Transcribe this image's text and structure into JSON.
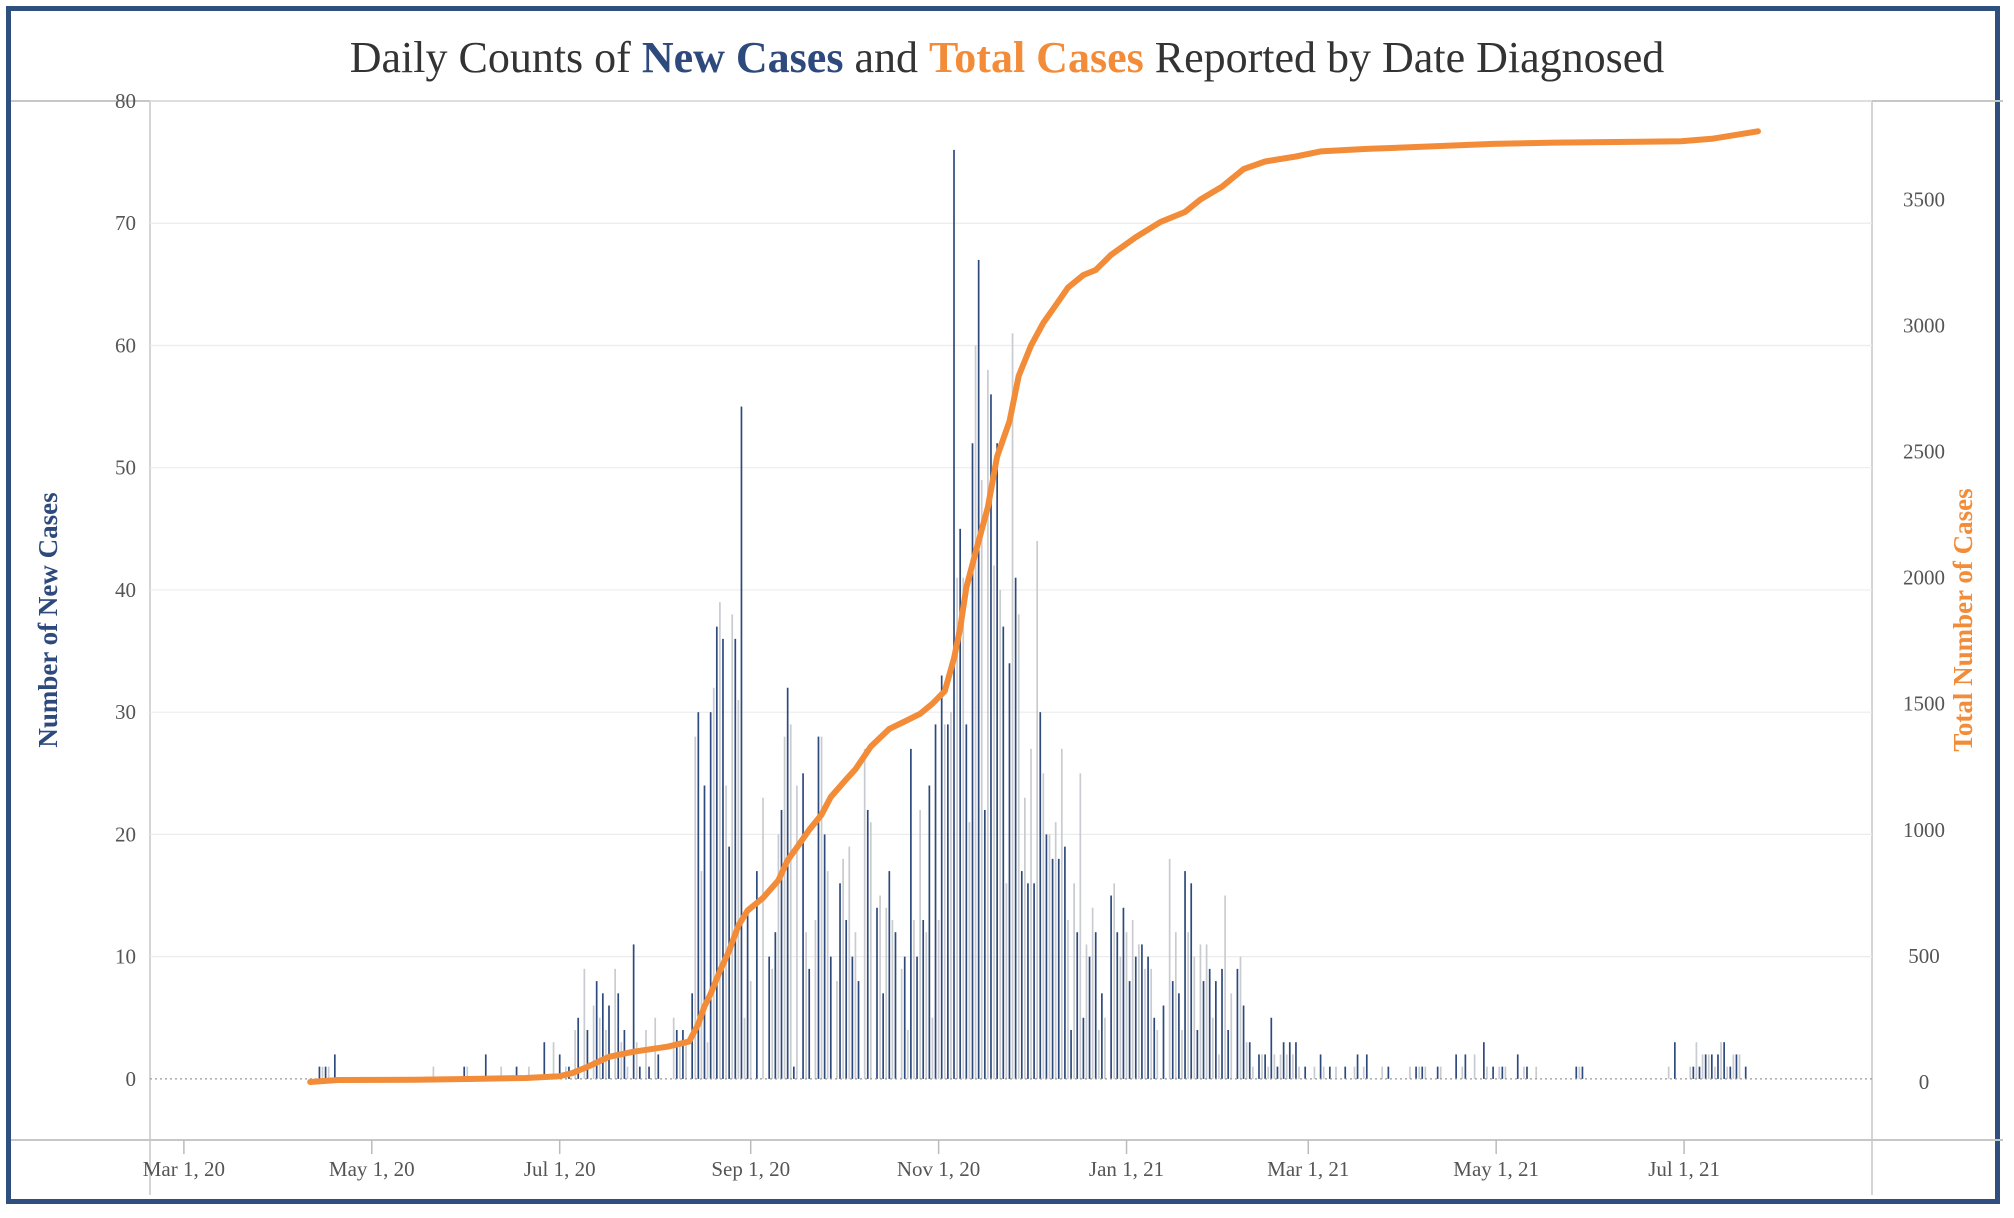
{
  "chart_data": {
    "type": "bar+line",
    "title": {
      "parts": [
        {
          "text": "Daily Counts of ",
          "color": "#333333",
          "bold": false
        },
        {
          "text": "New Cases",
          "color": "#2e4a7d",
          "bold": true
        },
        {
          "text": " and ",
          "color": "#333333",
          "bold": false
        },
        {
          "text": "Total Cases",
          "color": "#f28c38",
          "bold": true
        },
        {
          "text": " Reported by Date Diagnosed",
          "color": "#333333",
          "bold": false
        }
      ]
    },
    "ylabel_left": "Number of New Cases",
    "ylabel_right": "Total Number of Cases",
    "colors": {
      "bar_dark": "#2e4a7d",
      "bar_light": "#c8cbd0",
      "line": "#f28c38",
      "left_label": "#2e4a7d",
      "right_label": "#f28c38"
    },
    "xlim": [
      "2020-02-19",
      "2021-08-31"
    ],
    "x_ticks": [
      {
        "date": "2020-03-01",
        "label": "Mar 1, 20"
      },
      {
        "date": "2020-05-01",
        "label": "May 1, 20"
      },
      {
        "date": "2020-07-01",
        "label": "Jul 1, 20"
      },
      {
        "date": "2020-09-01",
        "label": "Sep 1, 20"
      },
      {
        "date": "2020-11-01",
        "label": "Nov 1, 20"
      },
      {
        "date": "2021-01-01",
        "label": "Jan 1, 21"
      },
      {
        "date": "2021-03-01",
        "label": "Mar 1, 21"
      },
      {
        "date": "2021-05-01",
        "label": "May 1, 21"
      },
      {
        "date": "2021-07-01",
        "label": "Jul 1, 21"
      }
    ],
    "ylim_left": [
      -5,
      80
    ],
    "yticks_left": [
      0,
      10,
      20,
      30,
      40,
      50,
      60,
      70,
      80
    ],
    "ylim_right": [
      -230,
      3890
    ],
    "yticks_right": [
      0,
      500,
      1000,
      1500,
      2000,
      2500,
      3000,
      3500
    ],
    "grid": true,
    "new_cases": [
      [
        "2020-04-14",
        1
      ],
      [
        "2020-04-15",
        1
      ],
      [
        "2020-04-16",
        1
      ],
      [
        "2020-04-17",
        1
      ],
      [
        "2020-04-19",
        2
      ],
      [
        "2020-05-21",
        1
      ],
      [
        "2020-05-31",
        1
      ],
      [
        "2020-06-01",
        1
      ],
      [
        "2020-06-07",
        2
      ],
      [
        "2020-06-12",
        1
      ],
      [
        "2020-06-17",
        1
      ],
      [
        "2020-06-21",
        1
      ],
      [
        "2020-06-26",
        3
      ],
      [
        "2020-06-29",
        3
      ],
      [
        "2020-07-01",
        2
      ],
      [
        "2020-07-03",
        1
      ],
      [
        "2020-07-04",
        1
      ],
      [
        "2020-07-06",
        4
      ],
      [
        "2020-07-07",
        5
      ],
      [
        "2020-07-09",
        9
      ],
      [
        "2020-07-10",
        4
      ],
      [
        "2020-07-12",
        6
      ],
      [
        "2020-07-13",
        8
      ],
      [
        "2020-07-14",
        5
      ],
      [
        "2020-07-15",
        7
      ],
      [
        "2020-07-16",
        4
      ],
      [
        "2020-07-17",
        6
      ],
      [
        "2020-07-19",
        9
      ],
      [
        "2020-07-20",
        7
      ],
      [
        "2020-07-21",
        3
      ],
      [
        "2020-07-22",
        4
      ],
      [
        "2020-07-23",
        1
      ],
      [
        "2020-07-25",
        11
      ],
      [
        "2020-07-26",
        3
      ],
      [
        "2020-07-27",
        1
      ],
      [
        "2020-07-29",
        4
      ],
      [
        "2020-07-30",
        1
      ],
      [
        "2020-08-01",
        5
      ],
      [
        "2020-08-02",
        2
      ],
      [
        "2020-08-07",
        5
      ],
      [
        "2020-08-08",
        4
      ],
      [
        "2020-08-09",
        3
      ],
      [
        "2020-08-10",
        4
      ],
      [
        "2020-08-11",
        3
      ],
      [
        "2020-08-13",
        7
      ],
      [
        "2020-08-14",
        28
      ],
      [
        "2020-08-15",
        30
      ],
      [
        "2020-08-16",
        17
      ],
      [
        "2020-08-17",
        24
      ],
      [
        "2020-08-18",
        3
      ],
      [
        "2020-08-19",
        30
      ],
      [
        "2020-08-20",
        32
      ],
      [
        "2020-08-21",
        37
      ],
      [
        "2020-08-22",
        39
      ],
      [
        "2020-08-23",
        36
      ],
      [
        "2020-08-24",
        24
      ],
      [
        "2020-08-25",
        19
      ],
      [
        "2020-08-26",
        38
      ],
      [
        "2020-08-27",
        36
      ],
      [
        "2020-08-28",
        31
      ],
      [
        "2020-08-29",
        55
      ],
      [
        "2020-08-30",
        5
      ],
      [
        "2020-08-31",
        14
      ],
      [
        "2020-09-01",
        8
      ],
      [
        "2020-09-03",
        17
      ],
      [
        "2020-09-05",
        23
      ],
      [
        "2020-09-07",
        10
      ],
      [
        "2020-09-08",
        9
      ],
      [
        "2020-09-09",
        12
      ],
      [
        "2020-09-10",
        20
      ],
      [
        "2020-09-11",
        22
      ],
      [
        "2020-09-12",
        28
      ],
      [
        "2020-09-13",
        32
      ],
      [
        "2020-09-14",
        29
      ],
      [
        "2020-09-15",
        1
      ],
      [
        "2020-09-16",
        24
      ],
      [
        "2020-09-18",
        25
      ],
      [
        "2020-09-19",
        12
      ],
      [
        "2020-09-20",
        9
      ],
      [
        "2020-09-22",
        13
      ],
      [
        "2020-09-23",
        28
      ],
      [
        "2020-09-24",
        28
      ],
      [
        "2020-09-25",
        20
      ],
      [
        "2020-09-26",
        17
      ],
      [
        "2020-09-27",
        10
      ],
      [
        "2020-09-29",
        8
      ],
      [
        "2020-09-30",
        16
      ],
      [
        "2020-10-01",
        18
      ],
      [
        "2020-10-02",
        13
      ],
      [
        "2020-10-03",
        19
      ],
      [
        "2020-10-04",
        10
      ],
      [
        "2020-10-05",
        12
      ],
      [
        "2020-10-06",
        8
      ],
      [
        "2020-10-08",
        27
      ],
      [
        "2020-10-09",
        22
      ],
      [
        "2020-10-10",
        21
      ],
      [
        "2020-10-12",
        14
      ],
      [
        "2020-10-13",
        15
      ],
      [
        "2020-10-14",
        7
      ],
      [
        "2020-10-15",
        14
      ],
      [
        "2020-10-16",
        17
      ],
      [
        "2020-10-17",
        13
      ],
      [
        "2020-10-18",
        12
      ],
      [
        "2020-10-20",
        9
      ],
      [
        "2020-10-21",
        10
      ],
      [
        "2020-10-22",
        4
      ],
      [
        "2020-10-23",
        27
      ],
      [
        "2020-10-24",
        13
      ],
      [
        "2020-10-25",
        10
      ],
      [
        "2020-10-26",
        22
      ],
      [
        "2020-10-27",
        13
      ],
      [
        "2020-10-28",
        12
      ],
      [
        "2020-10-29",
        24
      ],
      [
        "2020-10-30",
        5
      ],
      [
        "2020-10-31",
        29
      ],
      [
        "2020-11-01",
        13
      ],
      [
        "2020-11-02",
        33
      ],
      [
        "2020-11-03",
        29
      ],
      [
        "2020-11-04",
        29
      ],
      [
        "2020-11-05",
        30
      ],
      [
        "2020-11-06",
        76
      ],
      [
        "2020-11-07",
        41
      ],
      [
        "2020-11-08",
        45
      ],
      [
        "2020-11-09",
        41
      ],
      [
        "2020-11-10",
        29
      ],
      [
        "2020-11-11",
        21
      ],
      [
        "2020-11-12",
        52
      ],
      [
        "2020-11-13",
        60
      ],
      [
        "2020-11-14",
        67
      ],
      [
        "2020-11-15",
        49
      ],
      [
        "2020-11-16",
        22
      ],
      [
        "2020-11-17",
        58
      ],
      [
        "2020-11-18",
        56
      ],
      [
        "2020-11-19",
        42
      ],
      [
        "2020-11-20",
        52
      ],
      [
        "2020-11-21",
        40
      ],
      [
        "2020-11-22",
        37
      ],
      [
        "2020-11-23",
        16
      ],
      [
        "2020-11-24",
        34
      ],
      [
        "2020-11-25",
        61
      ],
      [
        "2020-11-26",
        41
      ],
      [
        "2020-11-27",
        38
      ],
      [
        "2020-11-28",
        17
      ],
      [
        "2020-11-29",
        23
      ],
      [
        "2020-11-30",
        16
      ],
      [
        "2020-12-01",
        27
      ],
      [
        "2020-12-02",
        16
      ],
      [
        "2020-12-03",
        44
      ],
      [
        "2020-12-04",
        30
      ],
      [
        "2020-12-05",
        25
      ],
      [
        "2020-12-06",
        20
      ],
      [
        "2020-12-07",
        20
      ],
      [
        "2020-12-08",
        18
      ],
      [
        "2020-12-09",
        21
      ],
      [
        "2020-12-10",
        18
      ],
      [
        "2020-12-11",
        27
      ],
      [
        "2020-12-12",
        19
      ],
      [
        "2020-12-13",
        13
      ],
      [
        "2020-12-14",
        4
      ],
      [
        "2020-12-15",
        16
      ],
      [
        "2020-12-16",
        12
      ],
      [
        "2020-12-17",
        25
      ],
      [
        "2020-12-18",
        5
      ],
      [
        "2020-12-19",
        11
      ],
      [
        "2020-12-20",
        10
      ],
      [
        "2020-12-21",
        14
      ],
      [
        "2020-12-22",
        12
      ],
      [
        "2020-12-23",
        4
      ],
      [
        "2020-12-24",
        7
      ],
      [
        "2020-12-25",
        5
      ],
      [
        "2020-12-27",
        15
      ],
      [
        "2020-12-28",
        16
      ],
      [
        "2020-12-29",
        12
      ],
      [
        "2020-12-30",
        10
      ],
      [
        "2020-12-31",
        14
      ],
      [
        "2021-01-01",
        12
      ],
      [
        "2021-01-02",
        8
      ],
      [
        "2021-01-03",
        13
      ],
      [
        "2021-01-04",
        10
      ],
      [
        "2021-01-05",
        11
      ],
      [
        "2021-01-06",
        11
      ],
      [
        "2021-01-07",
        9
      ],
      [
        "2021-01-08",
        10
      ],
      [
        "2021-01-09",
        9
      ],
      [
        "2021-01-10",
        5
      ],
      [
        "2021-01-11",
        4
      ],
      [
        "2021-01-13",
        6
      ],
      [
        "2021-01-15",
        18
      ],
      [
        "2021-01-16",
        8
      ],
      [
        "2021-01-17",
        12
      ],
      [
        "2021-01-18",
        7
      ],
      [
        "2021-01-19",
        4
      ],
      [
        "2021-01-20",
        17
      ],
      [
        "2021-01-21",
        12
      ],
      [
        "2021-01-22",
        16
      ],
      [
        "2021-01-23",
        10
      ],
      [
        "2021-01-24",
        4
      ],
      [
        "2021-01-25",
        11
      ],
      [
        "2021-01-26",
        8
      ],
      [
        "2021-01-27",
        11
      ],
      [
        "2021-01-28",
        9
      ],
      [
        "2021-01-29",
        5
      ],
      [
        "2021-01-30",
        8
      ],
      [
        "2021-01-31",
        2
      ],
      [
        "2021-02-01",
        9
      ],
      [
        "2021-02-02",
        15
      ],
      [
        "2021-02-03",
        4
      ],
      [
        "2021-02-04",
        7
      ],
      [
        "2021-02-06",
        9
      ],
      [
        "2021-02-07",
        10
      ],
      [
        "2021-02-08",
        6
      ],
      [
        "2021-02-09",
        3
      ],
      [
        "2021-02-10",
        3
      ],
      [
        "2021-02-11",
        1
      ],
      [
        "2021-02-13",
        2
      ],
      [
        "2021-02-14",
        2
      ],
      [
        "2021-02-15",
        2
      ],
      [
        "2021-02-16",
        1
      ],
      [
        "2021-02-17",
        5
      ],
      [
        "2021-02-18",
        2
      ],
      [
        "2021-02-19",
        1
      ],
      [
        "2021-02-20",
        2
      ],
      [
        "2021-02-21",
        3
      ],
      [
        "2021-02-22",
        2
      ],
      [
        "2021-02-23",
        3
      ],
      [
        "2021-02-24",
        2
      ],
      [
        "2021-02-25",
        3
      ],
      [
        "2021-02-26",
        1
      ],
      [
        "2021-02-28",
        1
      ],
      [
        "2021-03-03",
        1
      ],
      [
        "2021-03-05",
        2
      ],
      [
        "2021-03-06",
        1
      ],
      [
        "2021-03-08",
        1
      ],
      [
        "2021-03-10",
        1
      ],
      [
        "2021-03-13",
        1
      ],
      [
        "2021-03-16",
        1
      ],
      [
        "2021-03-17",
        2
      ],
      [
        "2021-03-19",
        1
      ],
      [
        "2021-03-20",
        2
      ],
      [
        "2021-03-25",
        1
      ],
      [
        "2021-03-27",
        1
      ],
      [
        "2021-04-03",
        1
      ],
      [
        "2021-04-05",
        1
      ],
      [
        "2021-04-06",
        1
      ],
      [
        "2021-04-07",
        1
      ],
      [
        "2021-04-08",
        1
      ],
      [
        "2021-04-12",
        1
      ],
      [
        "2021-04-13",
        1
      ],
      [
        "2021-04-18",
        2
      ],
      [
        "2021-04-20",
        1
      ],
      [
        "2021-04-21",
        2
      ],
      [
        "2021-04-24",
        2
      ],
      [
        "2021-04-27",
        3
      ],
      [
        "2021-04-28",
        1
      ],
      [
        "2021-04-30",
        1
      ],
      [
        "2021-05-02",
        1
      ],
      [
        "2021-05-03",
        1
      ],
      [
        "2021-05-04",
        1
      ],
      [
        "2021-05-08",
        2
      ],
      [
        "2021-05-10",
        1
      ],
      [
        "2021-05-11",
        1
      ],
      [
        "2021-05-14",
        1
      ],
      [
        "2021-05-27",
        1
      ],
      [
        "2021-05-28",
        1
      ],
      [
        "2021-05-29",
        1
      ],
      [
        "2021-06-26",
        1
      ],
      [
        "2021-06-28",
        3
      ],
      [
        "2021-07-03",
        1
      ],
      [
        "2021-07-04",
        1
      ],
      [
        "2021-07-05",
        3
      ],
      [
        "2021-07-06",
        1
      ],
      [
        "2021-07-07",
        2
      ],
      [
        "2021-07-08",
        2
      ],
      [
        "2021-07-09",
        2
      ],
      [
        "2021-07-10",
        2
      ],
      [
        "2021-07-11",
        1
      ],
      [
        "2021-07-12",
        2
      ],
      [
        "2021-07-13",
        3
      ],
      [
        "2021-07-14",
        3
      ],
      [
        "2021-07-15",
        1
      ],
      [
        "2021-07-16",
        1
      ],
      [
        "2021-07-17",
        2
      ],
      [
        "2021-07-18",
        2
      ],
      [
        "2021-07-19",
        2
      ],
      [
        "2021-07-21",
        1
      ]
    ],
    "total_cases": [
      [
        "2020-04-11",
        0
      ],
      [
        "2020-04-20",
        8
      ],
      [
        "2020-05-15",
        9
      ],
      [
        "2020-06-01",
        12
      ],
      [
        "2020-06-20",
        16
      ],
      [
        "2020-07-01",
        23
      ],
      [
        "2020-07-05",
        35
      ],
      [
        "2020-07-10",
        60
      ],
      [
        "2020-07-17",
        100
      ],
      [
        "2020-07-25",
        120
      ],
      [
        "2020-08-05",
        140
      ],
      [
        "2020-08-12",
        160
      ],
      [
        "2020-08-15",
        230
      ],
      [
        "2020-08-17",
        300
      ],
      [
        "2020-08-19",
        350
      ],
      [
        "2020-08-22",
        440
      ],
      [
        "2020-08-25",
        520
      ],
      [
        "2020-08-28",
        620
      ],
      [
        "2020-08-31",
        680
      ],
      [
        "2020-09-05",
        730
      ],
      [
        "2020-09-10",
        800
      ],
      [
        "2020-09-13",
        880
      ],
      [
        "2020-09-16",
        930
      ],
      [
        "2020-09-20",
        1000
      ],
      [
        "2020-09-24",
        1060
      ],
      [
        "2020-09-27",
        1130
      ],
      [
        "2020-10-02",
        1200
      ],
      [
        "2020-10-05",
        1240
      ],
      [
        "2020-10-10",
        1330
      ],
      [
        "2020-10-16",
        1400
      ],
      [
        "2020-10-21",
        1430
      ],
      [
        "2020-10-26",
        1460
      ],
      [
        "2020-10-30",
        1500
      ],
      [
        "2020-11-03",
        1550
      ],
      [
        "2020-11-06",
        1680
      ],
      [
        "2020-11-08",
        1800
      ],
      [
        "2020-11-10",
        1960
      ],
      [
        "2020-11-13",
        2100
      ],
      [
        "2020-11-17",
        2280
      ],
      [
        "2020-11-20",
        2480
      ],
      [
        "2020-11-24",
        2620
      ],
      [
        "2020-11-27",
        2800
      ],
      [
        "2020-12-01",
        2920
      ],
      [
        "2020-12-05",
        3010
      ],
      [
        "2020-12-09",
        3080
      ],
      [
        "2020-12-13",
        3150
      ],
      [
        "2020-12-18",
        3200
      ],
      [
        "2020-12-22",
        3220
      ],
      [
        "2020-12-27",
        3280
      ],
      [
        "2021-01-04",
        3350
      ],
      [
        "2021-01-12",
        3410
      ],
      [
        "2021-01-20",
        3450
      ],
      [
        "2021-01-25",
        3500
      ],
      [
        "2021-02-01",
        3550
      ],
      [
        "2021-02-08",
        3620
      ],
      [
        "2021-02-15",
        3650
      ],
      [
        "2021-02-25",
        3670
      ],
      [
        "2021-03-05",
        3690
      ],
      [
        "2021-03-20",
        3700
      ],
      [
        "2021-04-10",
        3710
      ],
      [
        "2021-04-30",
        3720
      ],
      [
        "2021-05-20",
        3725
      ],
      [
        "2021-06-30",
        3730
      ],
      [
        "2021-07-10",
        3740
      ],
      [
        "2021-07-20",
        3760
      ],
      [
        "2021-07-25",
        3770
      ]
    ]
  }
}
